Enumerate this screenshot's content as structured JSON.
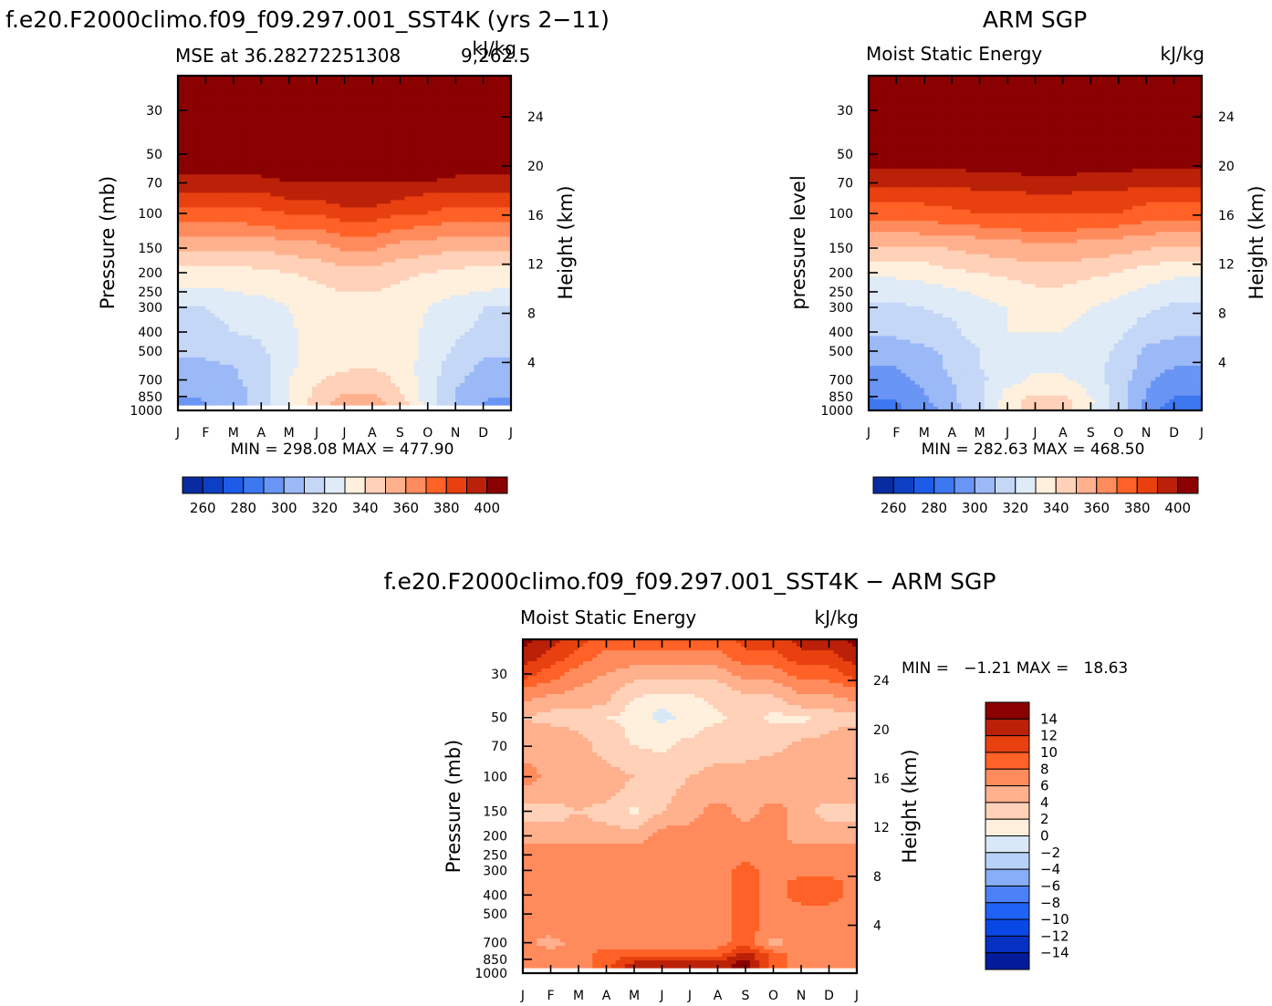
{
  "chart_data": [
    {
      "type": "heatmap",
      "id": "model",
      "title": "f.e20.F2000climo.f09_f09.297.001_SST4K (yrs 2−11)",
      "subtitle_left": "MSE at 36.28272251308",
      "subtitle_overlap": "9,262.5",
      "units": "kJ/kg",
      "ylabel": "Pressure (mb)",
      "y2label": "Height (km)",
      "months": [
        "J",
        "F",
        "M",
        "A",
        "M",
        "J",
        "J",
        "A",
        "S",
        "O",
        "N",
        "D",
        "J"
      ],
      "pressure_ticks": [
        "30",
        "50",
        "70",
        "100",
        "150",
        "200",
        "250",
        "300",
        "400",
        "500",
        "700",
        "850",
        "1000"
      ],
      "height_ticks": [
        "24",
        "20",
        "16",
        "12",
        "8",
        "4"
      ],
      "minmax_text": "MIN = 298.08 MAX = 477.90",
      "min": 298.08,
      "max": 477.9,
      "contour_levels": [
        250,
        260,
        270,
        280,
        290,
        300,
        310,
        320,
        330,
        340,
        350,
        360,
        370,
        380,
        390,
        400
      ],
      "colorbar_labels": [
        "260",
        "280",
        "300",
        "320",
        "340",
        "360",
        "380",
        "400"
      ],
      "ylim_mb": [
        20,
        1000
      ],
      "surface_gap": true,
      "monthly_profiles_kJkg": {
        "rows_mb": [
          20,
          40,
          60,
          70,
          85,
          100,
          120,
          140,
          170,
          200,
          250,
          300,
          400,
          500,
          600,
          700,
          800,
          900
        ],
        "values": [
          [
            405,
            405,
            405,
            405,
            405,
            405,
            405,
            405,
            405,
            405,
            405,
            405,
            405
          ],
          [
            405,
            405,
            405,
            405,
            405,
            405,
            405,
            405,
            405,
            405,
            405,
            405,
            405
          ],
          [
            405,
            405,
            405,
            405,
            405,
            405,
            405,
            405,
            405,
            405,
            405,
            405,
            405
          ],
          [
            395,
            395,
            395,
            395,
            400,
            400,
            400,
            400,
            400,
            400,
            395,
            395,
            395
          ],
          [
            385,
            385,
            385,
            385,
            390,
            390,
            395,
            395,
            390,
            385,
            385,
            385,
            385
          ],
          [
            375,
            375,
            375,
            378,
            380,
            380,
            385,
            385,
            380,
            380,
            375,
            375,
            375
          ],
          [
            365,
            365,
            365,
            368,
            370,
            370,
            375,
            375,
            370,
            368,
            365,
            365,
            365
          ],
          [
            355,
            355,
            355,
            355,
            358,
            360,
            365,
            365,
            360,
            358,
            355,
            355,
            355
          ],
          [
            345,
            345,
            345,
            345,
            348,
            350,
            355,
            355,
            350,
            348,
            345,
            345,
            345
          ],
          [
            335,
            335,
            335,
            338,
            340,
            342,
            345,
            345,
            342,
            340,
            338,
            335,
            335
          ],
          [
            328,
            328,
            330,
            332,
            335,
            338,
            340,
            340,
            338,
            335,
            332,
            330,
            328
          ],
          [
            320,
            320,
            322,
            325,
            330,
            335,
            338,
            338,
            335,
            330,
            325,
            320,
            320
          ],
          [
            318,
            318,
            320,
            322,
            328,
            335,
            338,
            338,
            335,
            328,
            322,
            318,
            318
          ],
          [
            312,
            312,
            315,
            318,
            328,
            335,
            338,
            338,
            335,
            328,
            318,
            312,
            312
          ],
          [
            308,
            308,
            310,
            315,
            328,
            335,
            338,
            340,
            335,
            325,
            315,
            308,
            308
          ],
          [
            305,
            305,
            308,
            315,
            330,
            338,
            345,
            345,
            338,
            325,
            312,
            305,
            305
          ],
          [
            302,
            302,
            305,
            315,
            330,
            342,
            348,
            348,
            340,
            325,
            310,
            302,
            302
          ],
          [
            298,
            300,
            305,
            315,
            330,
            345,
            355,
            355,
            345,
            325,
            310,
            300,
            298
          ]
        ]
      }
    },
    {
      "type": "heatmap",
      "id": "obs",
      "title": "ARM SGP",
      "subtitle_left": "Moist Static Energy",
      "units": "kJ/kg",
      "ylabel": "pressure level",
      "y2label": "Height (km)",
      "months": [
        "J",
        "F",
        "M",
        "A",
        "M",
        "J",
        "J",
        "A",
        "S",
        "O",
        "N",
        "D",
        "J"
      ],
      "pressure_ticks": [
        "30",
        "50",
        "70",
        "100",
        "150",
        "200",
        "250",
        "300",
        "400",
        "500",
        "700",
        "850",
        "1000"
      ],
      "height_ticks": [
        "24",
        "20",
        "16",
        "12",
        "8",
        "4"
      ],
      "minmax_text": "MIN = 282.63 MAX = 468.50",
      "min": 282.63,
      "max": 468.5,
      "contour_levels": [
        250,
        260,
        270,
        280,
        290,
        300,
        310,
        320,
        330,
        340,
        350,
        360,
        370,
        380,
        390,
        400
      ],
      "colorbar_labels": [
        "260",
        "280",
        "300",
        "320",
        "340",
        "360",
        "380",
        "400"
      ],
      "ylim_mb": [
        20,
        1000
      ],
      "surface_gap": false,
      "monthly_profiles_kJkg": {
        "rows_mb": [
          20,
          40,
          55,
          65,
          80,
          100,
          120,
          140,
          170,
          200,
          250,
          300,
          400,
          500,
          600,
          700,
          800,
          900,
          1000
        ],
        "values": [
          [
            405,
            405,
            405,
            405,
            405,
            405,
            405,
            405,
            405,
            405,
            405,
            405,
            405
          ],
          [
            405,
            405,
            405,
            405,
            405,
            405,
            405,
            405,
            405,
            405,
            405,
            405,
            405
          ],
          [
            405,
            405,
            405,
            405,
            405,
            405,
            405,
            405,
            405,
            405,
            405,
            405,
            405
          ],
          [
            395,
            395,
            395,
            395,
            398,
            398,
            400,
            400,
            398,
            398,
            395,
            395,
            395
          ],
          [
            385,
            385,
            385,
            385,
            388,
            388,
            390,
            390,
            388,
            388,
            385,
            385,
            385
          ],
          [
            375,
            375,
            375,
            378,
            380,
            380,
            380,
            380,
            380,
            380,
            375,
            375,
            375
          ],
          [
            362,
            362,
            365,
            366,
            368,
            370,
            372,
            372,
            370,
            368,
            365,
            362,
            362
          ],
          [
            352,
            352,
            352,
            354,
            356,
            358,
            360,
            360,
            358,
            356,
            354,
            352,
            352
          ],
          [
            342,
            342,
            342,
            345,
            348,
            350,
            352,
            352,
            350,
            348,
            345,
            342,
            342
          ],
          [
            332,
            332,
            335,
            338,
            340,
            342,
            345,
            345,
            342,
            340,
            335,
            332,
            332
          ],
          [
            325,
            325,
            325,
            328,
            332,
            335,
            338,
            338,
            335,
            332,
            328,
            325,
            325
          ],
          [
            318,
            318,
            320,
            322,
            326,
            330,
            332,
            332,
            330,
            326,
            322,
            318,
            318
          ],
          [
            312,
            312,
            315,
            318,
            325,
            330,
            330,
            330,
            328,
            322,
            315,
            312,
            312
          ],
          [
            305,
            305,
            308,
            312,
            320,
            328,
            328,
            328,
            325,
            318,
            308,
            305,
            305
          ],
          [
            300,
            300,
            305,
            312,
            320,
            325,
            328,
            328,
            322,
            318,
            305,
            300,
            300
          ],
          [
            295,
            298,
            302,
            310,
            318,
            325,
            332,
            332,
            325,
            316,
            302,
            295,
            295
          ],
          [
            292,
            295,
            300,
            308,
            318,
            332,
            338,
            338,
            328,
            315,
            300,
            292,
            292
          ],
          [
            288,
            290,
            298,
            308,
            318,
            335,
            345,
            345,
            332,
            315,
            298,
            288,
            288
          ],
          [
            285,
            288,
            295,
            305,
            318,
            335,
            345,
            345,
            330,
            315,
            295,
            285,
            285
          ]
        ]
      }
    },
    {
      "type": "heatmap",
      "id": "diff",
      "title": "f.e20.F2000climo.f09_f09.297.001_SST4K − ARM SGP",
      "subtitle_left": "Moist Static Energy",
      "units": "kJ/kg",
      "ylabel": "Pressure (mb)",
      "y2label": "Height (km)",
      "months": [
        "J",
        "F",
        "M",
        "A",
        "M",
        "J",
        "J",
        "A",
        "S",
        "O",
        "N",
        "D",
        "J"
      ],
      "pressure_ticks": [
        "30",
        "50",
        "70",
        "100",
        "150",
        "200",
        "250",
        "300",
        "400",
        "500",
        "700",
        "850",
        "1000"
      ],
      "height_ticks": [
        "24",
        "20",
        "16",
        "12",
        "8",
        "4"
      ],
      "minmax_text": "MIN =   −1.21 MAX =   18.63",
      "min": -1.21,
      "max": 18.63,
      "contour_levels": [
        -15,
        -14,
        -12,
        -10,
        -8,
        -6,
        -4,
        -2,
        0,
        2,
        4,
        6,
        8,
        10,
        12,
        14,
        15
      ],
      "colorbar_labels": [
        "14",
        "12",
        "10",
        "8",
        "6",
        "4",
        "2",
        "0",
        "−2",
        "−4",
        "−6",
        "−8",
        "−10",
        "−12",
        "−14"
      ],
      "ylim_mb": [
        20,
        1000
      ],
      "surface_gap": true,
      "monthly_profiles_kJkg": {
        "rows_mb": [
          20,
          25,
          30,
          35,
          42,
          50,
          60,
          70,
          85,
          100,
          120,
          150,
          200,
          250,
          300,
          350,
          400,
          500,
          600,
          700,
          800,
          900
        ],
        "values": [
          [
            15,
            13,
            11,
            9,
            9,
            9,
            9,
            9,
            11,
            11,
            13,
            13,
            15
          ],
          [
            13,
            11,
            9,
            7,
            7,
            7,
            7,
            7,
            9,
            9,
            11,
            11,
            13
          ],
          [
            11,
            9,
            7,
            6,
            5,
            5,
            5,
            5,
            7,
            7,
            9,
            9,
            11
          ],
          [
            8,
            7,
            6,
            5,
            3,
            3,
            3,
            3,
            5,
            5,
            7,
            7,
            8
          ],
          [
            6,
            5,
            5,
            4,
            1.5,
            0.5,
            1,
            2.5,
            3,
            3,
            5,
            5,
            6
          ],
          [
            4,
            3,
            3,
            2,
            1.5,
            -1,
            1,
            1.5,
            3,
            1.5,
            1.5,
            3,
            3
          ],
          [
            5,
            5,
            4,
            3,
            1.5,
            1.5,
            1.5,
            3,
            3,
            3,
            3,
            4,
            5
          ],
          [
            5,
            5,
            5,
            3,
            2,
            1.5,
            3,
            3,
            3,
            3,
            5,
            5,
            5
          ],
          [
            6,
            5,
            5,
            4,
            3,
            3,
            3,
            4,
            4,
            5,
            5,
            5,
            5
          ],
          [
            8,
            5,
            5,
            5,
            4,
            2,
            4,
            5,
            5,
            5,
            6,
            5,
            5
          ],
          [
            5,
            5,
            5,
            5,
            3,
            3,
            5,
            5,
            5,
            5,
            5,
            5,
            5
          ],
          [
            3,
            3,
            4,
            3,
            1.5,
            4,
            5,
            7,
            5,
            7,
            5,
            3,
            3
          ],
          [
            5,
            5,
            5,
            5,
            5,
            7,
            7,
            7,
            7,
            7,
            5,
            5,
            5
          ],
          [
            7,
            7,
            7,
            7,
            7,
            7,
            7,
            7,
            7,
            7,
            7,
            7,
            7
          ],
          [
            7,
            7,
            7,
            7,
            7,
            7,
            7,
            7,
            9,
            7,
            7,
            7,
            7
          ],
          [
            7,
            7,
            7,
            7,
            7,
            7,
            7,
            7,
            9,
            7,
            9,
            9,
            7
          ],
          [
            7,
            7,
            7,
            7,
            7,
            7,
            7,
            7,
            9,
            7,
            9,
            9,
            7
          ],
          [
            7,
            7,
            7,
            7,
            7,
            7,
            7,
            7,
            9,
            7,
            7,
            7,
            7
          ],
          [
            6,
            7,
            7,
            7,
            7,
            7,
            7,
            7,
            9,
            7,
            7,
            7,
            7
          ],
          [
            7,
            5,
            7,
            7,
            7,
            7,
            7,
            7,
            9,
            5,
            7,
            7,
            7
          ],
          [
            7,
            7,
            7,
            9,
            9,
            9,
            9,
            9,
            13,
            9,
            7,
            7,
            7
          ],
          [
            7,
            7,
            7,
            9,
            13,
            13,
            13,
            13,
            15,
            9,
            7,
            7,
            7
          ]
        ]
      }
    }
  ]
}
